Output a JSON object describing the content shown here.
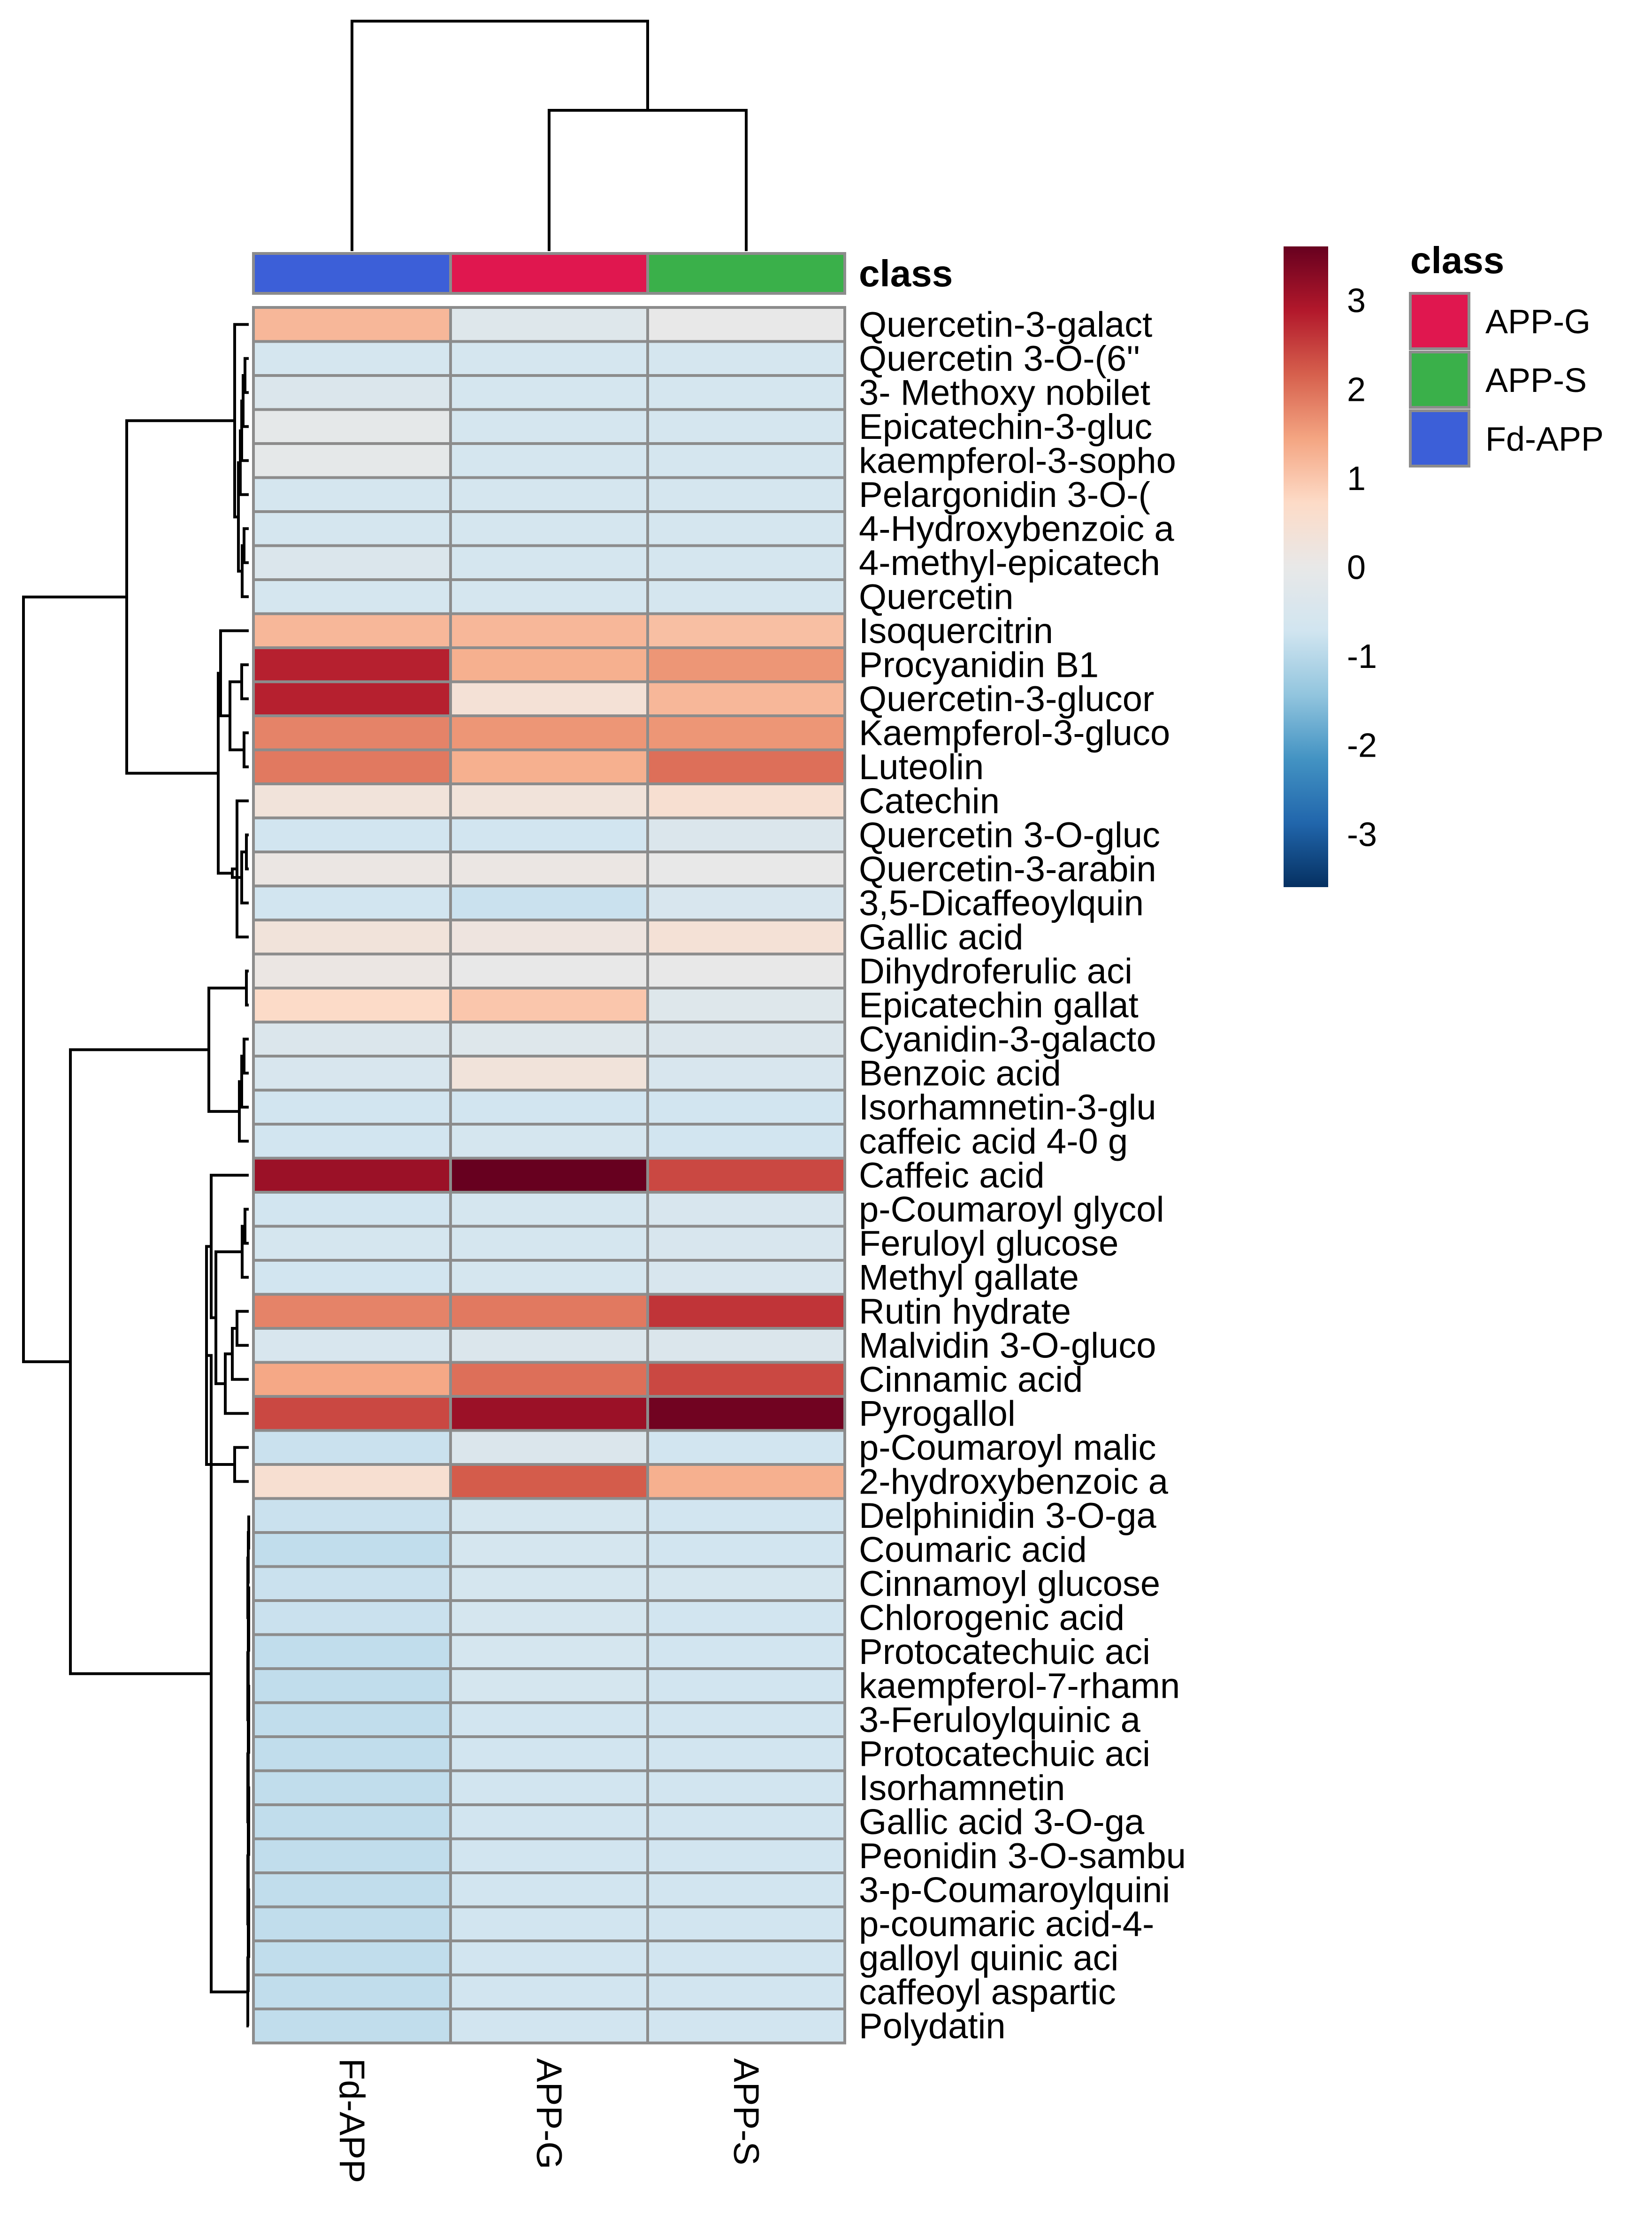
{
  "chart_data": {
    "type": "heatmap",
    "title": "",
    "columns": [
      "Fd-APP",
      "APP-G",
      "APP-S"
    ],
    "column_classes": [
      "Fd-APP",
      "APP-G",
      "APP-S"
    ],
    "class_annotation_label": "class",
    "class_legend": {
      "title": "class",
      "entries": [
        {
          "label": "APP-G",
          "color": "#E0174F"
        },
        {
          "label": "APP-S",
          "color": "#3AB04A"
        },
        {
          "label": "Fd-APP",
          "color": "#3C5FD8"
        }
      ]
    },
    "color_scale": {
      "ticks": [
        "3",
        "2",
        "1",
        "0",
        "-1",
        "-2",
        "-3"
      ],
      "min": -3.6,
      "max": 3.6,
      "colors": [
        "#053061",
        "#2166AC",
        "#4393C3",
        "#92C5DE",
        "#D1E5F0",
        "#E8E8E8",
        "#FDDBC7",
        "#F4A582",
        "#D6604D",
        "#B2182B",
        "#67001F"
      ]
    },
    "rows": [
      {
        "label": "Quercetin-3-galact",
        "values": [
          1.2,
          -0.3,
          0.0
        ]
      },
      {
        "label": "Quercetin 3-O-(6''",
        "values": [
          -0.6,
          -0.6,
          -0.6
        ]
      },
      {
        "label": "3- Methoxy nobilet",
        "values": [
          -0.4,
          -0.6,
          -0.6
        ]
      },
      {
        "label": "Epicatechin-3-gluc",
        "values": [
          -0.1,
          -0.6,
          -0.6
        ]
      },
      {
        "label": "kaempferol-3-sopho",
        "values": [
          -0.1,
          -0.6,
          -0.6
        ]
      },
      {
        "label": "Pelargonidin 3-O-(",
        "values": [
          -0.6,
          -0.6,
          -0.6
        ]
      },
      {
        "label": "4-Hydroxybenzoic a",
        "values": [
          -0.6,
          -0.6,
          -0.6
        ]
      },
      {
        "label": "4-methyl-epicatech",
        "values": [
          -0.4,
          -0.6,
          -0.6
        ]
      },
      {
        "label": "Quercetin",
        "values": [
          -0.6,
          -0.6,
          -0.6
        ]
      },
      {
        "label": "Isoquercitrin",
        "values": [
          1.2,
          1.2,
          1.1
        ]
      },
      {
        "label": "Procyanidin B1",
        "values": [
          2.8,
          1.3,
          1.6
        ]
      },
      {
        "label": "Quercetin-3-glucor",
        "values": [
          2.8,
          0.4,
          1.2
        ]
      },
      {
        "label": "Kaempferol-3-gluco",
        "values": [
          1.8,
          1.6,
          1.6
        ]
      },
      {
        "label": "Luteolin",
        "values": [
          1.9,
          1.3,
          2.0
        ]
      },
      {
        "label": "Catechin",
        "values": [
          0.3,
          0.3,
          0.5
        ]
      },
      {
        "label": "Quercetin 3-O-gluc",
        "values": [
          -0.7,
          -0.7,
          -0.4
        ]
      },
      {
        "label": "Quercetin-3-arabin",
        "values": [
          0.1,
          0.1,
          0.0
        ]
      },
      {
        "label": "3,5-Dicaffeoylquin",
        "values": [
          -0.7,
          -0.8,
          -0.5
        ]
      },
      {
        "label": "Gallic acid",
        "values": [
          0.3,
          0.2,
          0.4
        ]
      },
      {
        "label": "Dihydroferulic aci",
        "values": [
          0.1,
          0.0,
          0.0
        ]
      },
      {
        "label": "Epicatechin gallat",
        "values": [
          0.7,
          1.0,
          -0.3
        ]
      },
      {
        "label": "Cyanidin-3-galacto",
        "values": [
          -0.4,
          -0.3,
          -0.4
        ]
      },
      {
        "label": "Benzoic acid",
        "values": [
          -0.5,
          0.3,
          -0.5
        ]
      },
      {
        "label": "Isorhamnetin-3-glu",
        "values": [
          -0.7,
          -0.7,
          -0.7
        ]
      },
      {
        "label": "caffeic acid 4-0 g",
        "values": [
          -0.7,
          -0.6,
          -0.7
        ]
      },
      {
        "label": "Caffeic acid",
        "values": [
          3.1,
          3.6,
          2.4
        ]
      },
      {
        "label": "p-Coumaroyl glycol",
        "values": [
          -0.7,
          -0.6,
          -0.5
        ]
      },
      {
        "label": "Feruloyl glucose",
        "values": [
          -0.6,
          -0.6,
          -0.5
        ]
      },
      {
        "label": "Methyl gallate",
        "values": [
          -0.7,
          -0.6,
          -0.5
        ]
      },
      {
        "label": "Rutin hydrate",
        "values": [
          1.8,
          1.9,
          2.6
        ]
      },
      {
        "label": "Malvidin 3-O-gluco",
        "values": [
          -0.5,
          -0.4,
          -0.4
        ]
      },
      {
        "label": "Cinnamic acid",
        "values": [
          1.4,
          2.0,
          2.4
        ]
      },
      {
        "label": "Pyrogallol",
        "values": [
          2.4,
          3.1,
          3.5
        ]
      },
      {
        "label": "p-Coumaroyl malic",
        "values": [
          -0.8,
          -0.4,
          -0.7
        ]
      },
      {
        "label": "2-hydroxybenzoic a",
        "values": [
          0.5,
          2.2,
          1.3
        ]
      },
      {
        "label": "Delphinidin 3-O-ga",
        "values": [
          -0.8,
          -0.6,
          -0.7
        ]
      },
      {
        "label": "Coumaric acid",
        "values": [
          -0.9,
          -0.6,
          -0.7
        ]
      },
      {
        "label": "Cinnamoyl glucose",
        "values": [
          -0.8,
          -0.6,
          -0.6
        ]
      },
      {
        "label": "Chlorogenic acid",
        "values": [
          -0.8,
          -0.6,
          -0.7
        ]
      },
      {
        "label": "Protocatechuic aci",
        "values": [
          -0.9,
          -0.6,
          -0.7
        ]
      },
      {
        "label": "kaempferol-7-rhamn",
        "values": [
          -0.9,
          -0.6,
          -0.7
        ]
      },
      {
        "label": "3-Feruloylquinic a",
        "values": [
          -0.9,
          -0.7,
          -0.7
        ]
      },
      {
        "label": "Protocatechuic aci",
        "values": [
          -0.9,
          -0.7,
          -0.7
        ]
      },
      {
        "label": "Isorhamnetin",
        "values": [
          -0.9,
          -0.7,
          -0.7
        ]
      },
      {
        "label": "Gallic acid 3-O-ga",
        "values": [
          -0.9,
          -0.7,
          -0.7
        ]
      },
      {
        "label": "Peonidin 3-O-sambu",
        "values": [
          -0.9,
          -0.7,
          -0.7
        ]
      },
      {
        "label": "3-p-Coumaroylquini",
        "values": [
          -0.9,
          -0.7,
          -0.7
        ]
      },
      {
        "label": "p-coumaric acid-4-",
        "values": [
          -0.9,
          -0.7,
          -0.7
        ]
      },
      {
        "label": "galloyl quinic aci",
        "values": [
          -0.9,
          -0.7,
          -0.7
        ]
      },
      {
        "label": "caffeoyl aspartic",
        "values": [
          -0.9,
          -0.7,
          -0.7
        ]
      },
      {
        "label": "Polydatin",
        "values": [
          -0.9,
          -0.7,
          -0.7
        ]
      }
    ]
  }
}
